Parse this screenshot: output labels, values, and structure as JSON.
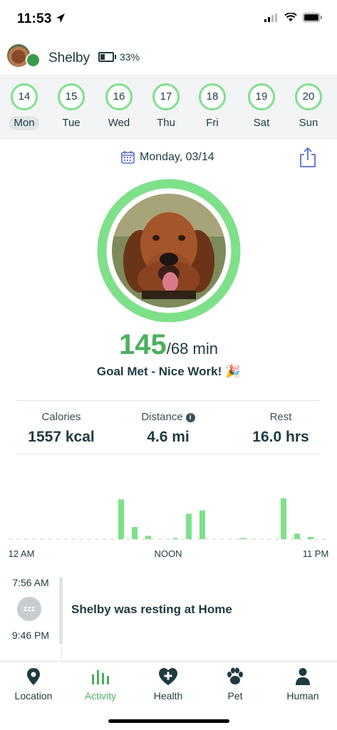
{
  "status": {
    "time": "11:53"
  },
  "header": {
    "pet_name": "Shelby",
    "battery_pct": "33%",
    "battery_level": 0.33
  },
  "week": [
    {
      "num": "14",
      "label": "Mon",
      "selected": true
    },
    {
      "num": "15",
      "label": "Tue"
    },
    {
      "num": "16",
      "label": "Wed"
    },
    {
      "num": "17",
      "label": "Thu"
    },
    {
      "num": "18",
      "label": "Fri"
    },
    {
      "num": "19",
      "label": "Sat"
    },
    {
      "num": "20",
      "label": "Sun"
    }
  ],
  "date_label": "Monday, 03/14",
  "goal": {
    "actual": "145",
    "target": "/68 min",
    "message": "Goal Met - Nice Work! 🎉",
    "progress_fraction": 1.0
  },
  "stats": {
    "calories": {
      "label": "Calories",
      "value": "1557 kcal"
    },
    "distance": {
      "label": "Distance",
      "value": "4.6 mi"
    },
    "rest": {
      "label": "Rest",
      "value": "16.0 hrs"
    }
  },
  "chart_data": {
    "type": "bar",
    "x_labels": [
      "12 AM",
      "NOON",
      "11 PM"
    ],
    "values": [
      0,
      0,
      0,
      0,
      0,
      0,
      0,
      0,
      3.6,
      1.1,
      0.3,
      0,
      0.1,
      2.3,
      2.6,
      0,
      0,
      0.1,
      0,
      0,
      3.7,
      0.5,
      0.2,
      0
    ],
    "ylim": [
      0,
      4
    ],
    "color": "#7fe08a"
  },
  "timeline": {
    "start": "7:56 AM",
    "end": "9:46 PM",
    "text": "Shelby was resting at Home",
    "icon": "zzz"
  },
  "tabs": [
    {
      "label": "Location",
      "icon": "location-pin-icon"
    },
    {
      "label": "Activity",
      "icon": "activity-bars-icon",
      "active": true
    },
    {
      "label": "Health",
      "icon": "health-heart-icon"
    },
    {
      "label": "Pet",
      "icon": "paw-icon"
    },
    {
      "label": "Human",
      "icon": "person-icon"
    }
  ],
  "colors": {
    "accent": "#4caf5e",
    "ring": "#7fe08a",
    "text": "#1f3a40"
  }
}
